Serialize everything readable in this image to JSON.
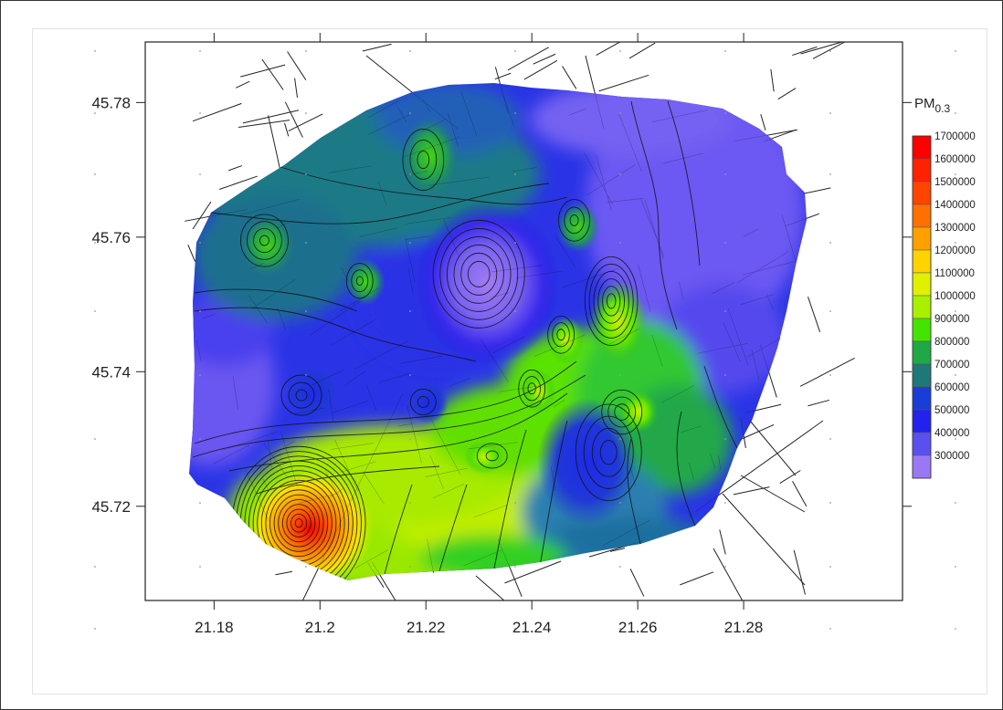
{
  "chart_data": {
    "type": "heatmap",
    "title": "",
    "xlabel": "",
    "ylabel": "",
    "xlim": [
      21.167,
      21.31
    ],
    "ylim": [
      45.706,
      45.789
    ],
    "x_ticks": [
      {
        "value": 21.18,
        "label": "21.18"
      },
      {
        "value": 21.2,
        "label": "21.2"
      },
      {
        "value": 21.22,
        "label": "21.22"
      },
      {
        "value": 21.24,
        "label": "21.24"
      },
      {
        "value": 21.26,
        "label": "21.26"
      },
      {
        "value": 21.28,
        "label": "21.28"
      }
    ],
    "y_ticks": [
      {
        "value": 45.72,
        "label": "45.72"
      },
      {
        "value": 45.74,
        "label": "45.74"
      },
      {
        "value": 45.76,
        "label": "45.76"
      },
      {
        "value": 45.78,
        "label": "45.78"
      }
    ],
    "colorbar": {
      "title_main": "PM",
      "title_sub": "0.3",
      "levels": [
        {
          "value": 1700000,
          "label": "1700000",
          "color": "#ff0000"
        },
        {
          "value": 1600000,
          "label": "1600000",
          "color": "#ff2200"
        },
        {
          "value": 1500000,
          "label": "1500000",
          "color": "#ff4400"
        },
        {
          "value": 1400000,
          "label": "1400000",
          "color": "#ff7000"
        },
        {
          "value": 1300000,
          "label": "1300000",
          "color": "#ffa000"
        },
        {
          "value": 1200000,
          "label": "1200000",
          "color": "#ffd200"
        },
        {
          "value": 1100000,
          "label": "1100000",
          "color": "#e0f000"
        },
        {
          "value": 1000000,
          "label": "1000000",
          "color": "#a8f000"
        },
        {
          "value": 900000,
          "label": "900000",
          "color": "#44e400"
        },
        {
          "value": 800000,
          "label": "800000",
          "color": "#20a848"
        },
        {
          "value": 700000,
          "label": "700000",
          "color": "#1f7878"
        },
        {
          "value": 600000,
          "label": "600000",
          "color": "#1a3cd8"
        },
        {
          "value": 500000,
          "label": "500000",
          "color": "#2222ee"
        },
        {
          "value": 400000,
          "label": "400000",
          "color": "#5a50f0"
        },
        {
          "value": 300000,
          "label": "300000",
          "color": "#9a78f4"
        }
      ]
    },
    "hotspots": [
      {
        "x": 21.196,
        "y": 45.7175,
        "value": 1700000
      },
      {
        "x": 21.23,
        "y": 45.7545,
        "value": 300000
      },
      {
        "x": 21.255,
        "y": 45.7505,
        "value": 1000000
      },
      {
        "x": 21.2455,
        "y": 45.7455,
        "value": 1000000
      },
      {
        "x": 21.24,
        "y": 45.7375,
        "value": 1000000
      },
      {
        "x": 21.257,
        "y": 45.734,
        "value": 1000000
      },
      {
        "x": 21.2325,
        "y": 45.7275,
        "value": 1100000
      },
      {
        "x": 21.1895,
        "y": 45.7595,
        "value": 900000
      },
      {
        "x": 21.2075,
        "y": 45.7535,
        "value": 900000
      },
      {
        "x": 21.248,
        "y": 45.7625,
        "value": 900000
      },
      {
        "x": 21.2195,
        "y": 45.7715,
        "value": 800000
      },
      {
        "x": 21.181,
        "y": 45.7355,
        "value": 300000
      },
      {
        "x": 21.1965,
        "y": 45.7365,
        "value": 600000
      },
      {
        "x": 21.2195,
        "y": 45.7355,
        "value": 600000
      },
      {
        "x": 21.2545,
        "y": 45.728,
        "value": 500000
      },
      {
        "x": 21.275,
        "y": 45.778,
        "value": 400000
      }
    ]
  }
}
